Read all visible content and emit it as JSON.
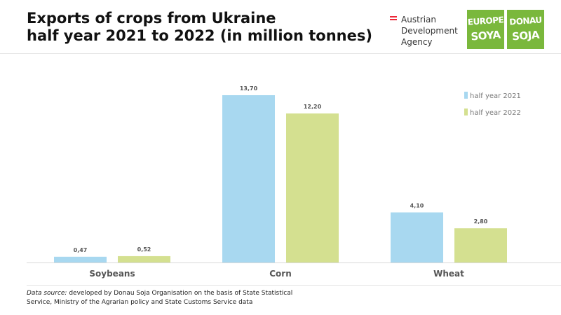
{
  "header": {
    "title_line1": "Exports of crops from Ukraine",
    "title_line2": "half year 2021 to 2022 (in million tonnes)"
  },
  "branding": {
    "ada_line1": "Austrian",
    "ada_line2": "Development",
    "ada_line3": "Agency",
    "ada_flag_colors": [
      "#ed2939",
      "#ffffff",
      "#ed2939"
    ],
    "europe_soya_line1": "EUROPE",
    "europe_soya_line2": "SOYA",
    "donau_soja_line1": "DONAU",
    "donau_soja_line2": "SOJA",
    "logo_color": "#7ab83c"
  },
  "chart_data": {
    "type": "bar",
    "title": "Exports of crops from Ukraine half year 2021 to 2022 (in million tonnes)",
    "xlabel": "",
    "ylabel": "",
    "categories": [
      "Soybeans",
      "Corn",
      "Wheat"
    ],
    "series": [
      {
        "name": "half year 2021",
        "values": [
          0.47,
          13.7,
          4.1
        ],
        "labels": [
          "0,47",
          "13,70",
          "4,10"
        ],
        "color": "#a8d8f0"
      },
      {
        "name": "half year 2022",
        "values": [
          0.52,
          12.2,
          2.8
        ],
        "labels": [
          "0,52",
          "12,20",
          "2,80"
        ],
        "color": "#d4e090"
      }
    ],
    "ylim": [
      0,
      14.5
    ],
    "grid": false,
    "legend_position": "top-right"
  },
  "footer": {
    "source_label": "Data source:",
    "source_line1": "developed by Donau Soja Organisation on the basis of State Statistical",
    "source_line2": "Service, Ministry of the Agrarian policy and State Customs Service data"
  }
}
